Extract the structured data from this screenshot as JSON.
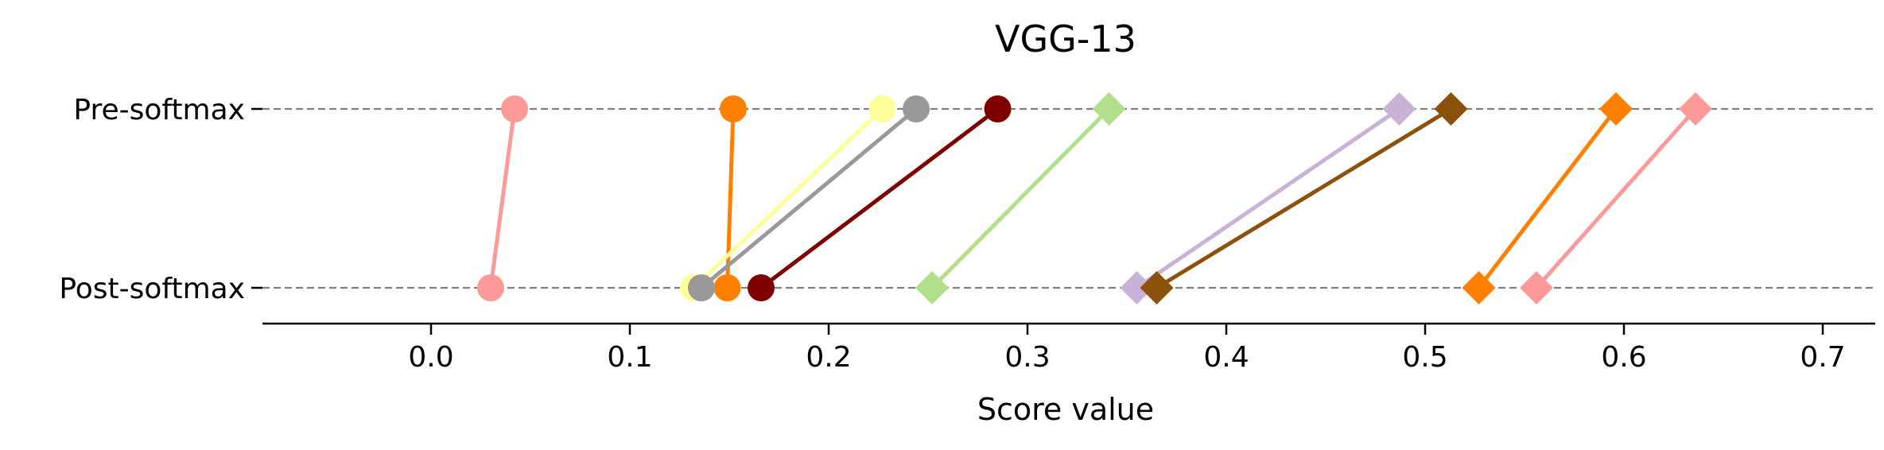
{
  "chart_data": {
    "type": "dumbbell",
    "title": "VGG-13",
    "xlabel": "Score value",
    "ylabel": "",
    "xlim": [
      -0.085,
      0.725
    ],
    "xticks": [
      0.0,
      0.1,
      0.2,
      0.3,
      0.4,
      0.5,
      0.6,
      0.7
    ],
    "xtick_labels": [
      "0.0",
      "0.1",
      "0.2",
      "0.3",
      "0.4",
      "0.5",
      "0.6",
      "0.7"
    ],
    "categories": [
      "Pre-softmax",
      "Post-softmax"
    ],
    "grid": "dashed horizontal at each category",
    "legend": "none",
    "series": [
      {
        "color": "#fb9a99",
        "marker": "circle",
        "pre": 0.042,
        "post": 0.03
      },
      {
        "color": "#ff7f00",
        "marker": "circle",
        "pre": 0.152,
        "post": 0.149
      },
      {
        "color": "#ffff99",
        "marker": "circle",
        "pre": 0.227,
        "post": 0.132
      },
      {
        "color": "#999999",
        "marker": "circle",
        "pre": 0.244,
        "post": 0.136
      },
      {
        "color": "#7f0000",
        "marker": "circle",
        "pre": 0.285,
        "post": 0.166
      },
      {
        "color": "#b2df8a",
        "marker": "diamond",
        "pre": 0.341,
        "post": 0.252
      },
      {
        "color": "#cab2d6",
        "marker": "diamond",
        "pre": 0.487,
        "post": 0.355
      },
      {
        "color": "#8c510a",
        "marker": "diamond",
        "pre": 0.513,
        "post": 0.365
      },
      {
        "color": "#ff7f00",
        "marker": "diamond",
        "pre": 0.596,
        "post": 0.527
      },
      {
        "color": "#fb9a99",
        "marker": "diamond",
        "pre": 0.636,
        "post": 0.556
      }
    ]
  }
}
